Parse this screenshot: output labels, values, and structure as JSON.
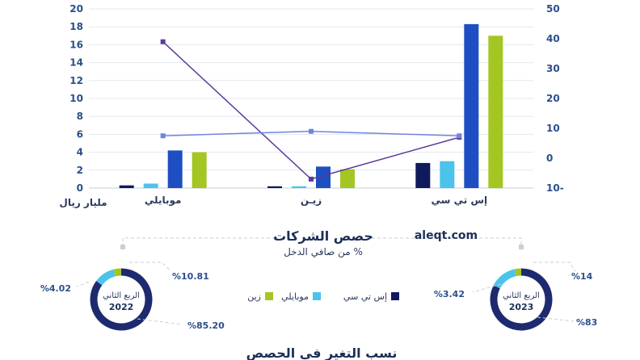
{
  "chart_data": [
    {
      "type": "bar",
      "ylabel": "مليار ريال",
      "ylim": [
        0,
        20
      ],
      "yticks": [
        "0",
        "2",
        "4",
        "6",
        "8",
        "10",
        "12",
        "14",
        "16",
        "18",
        "20"
      ],
      "y2lim": [
        -10,
        50
      ],
      "y2ticks": [
        "10-",
        "0",
        "10",
        "20",
        "30",
        "40",
        "50"
      ],
      "categories": [
        "موبايلي",
        "زيـن",
        "إس تي سي"
      ],
      "series": [
        {
          "name": "إس تي سي",
          "color": "#0f1a5c",
          "values": [
            0.3,
            0.2,
            2.8
          ]
        },
        {
          "name": "موبايلي",
          "color": "#4cc3ea",
          "values": [
            0.5,
            0.2,
            3.0
          ]
        },
        {
          "name": "",
          "color": "#1e4fc2",
          "values": [
            4.2,
            2.4,
            18.3
          ]
        },
        {
          "name": "زين",
          "color": "#a3c623",
          "values": [
            4.0,
            2.1,
            17.0
          ]
        }
      ],
      "lines": [
        {
          "axis": "right",
          "color": "#5b3a9a",
          "marker": "square",
          "values": [
            39,
            -7,
            7
          ]
        },
        {
          "axis": "right",
          "color": "#6f84e0",
          "marker": "square",
          "values": [
            7.5,
            9,
            7.5
          ]
        }
      ]
    },
    {
      "type": "pie",
      "title": "حصص الشركات",
      "subtitle": "من صافي الدخل %",
      "donuts": [
        {
          "label": "الربع الثاني",
          "year": "2022",
          "slices": [
            {
              "name": "إس تي سي",
              "value": 85.2,
              "label": "%85.20",
              "color": "#1d2a6e"
            },
            {
              "name": "موبايلي",
              "value": 10.81,
              "label": "%10.81",
              "color": "#4cc3ea"
            },
            {
              "name": "زين",
              "value": 4.02,
              "label": "%4.02",
              "color": "#a3c623"
            }
          ]
        },
        {
          "label": "الربع الثاني",
          "year": "2023",
          "slices": [
            {
              "name": "إس تي سي",
              "value": 83,
              "label": "%83",
              "color": "#1d2a6e"
            },
            {
              "name": "موبايلي",
              "value": 14,
              "label": "%14",
              "color": "#4cc3ea"
            },
            {
              "name": "زين",
              "value": 3.42,
              "label": "%3.42",
              "color": "#a3c623"
            }
          ]
        }
      ]
    }
  ],
  "watermark": "aleqt.com",
  "legend": [
    {
      "name": "إس تي سي",
      "color": "#0f1a5c"
    },
    {
      "name": "موبايلي",
      "color": "#4cc3ea"
    },
    {
      "name": "زين",
      "color": "#a3c623"
    }
  ],
  "footer_title": "نسب التغير في الحصص"
}
